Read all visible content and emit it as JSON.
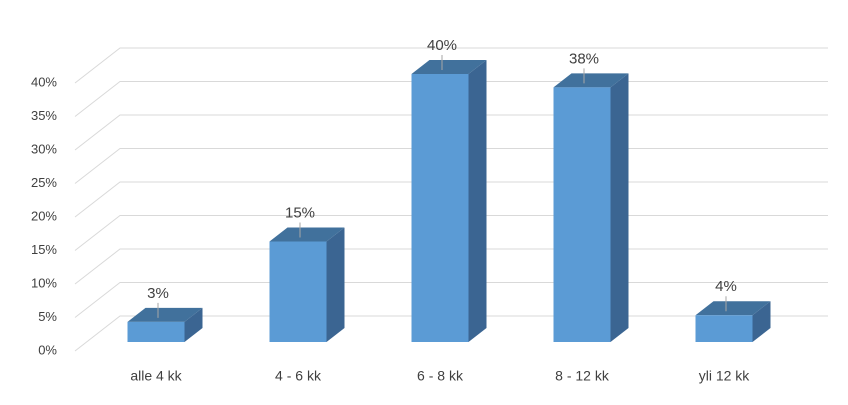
{
  "chart_data": {
    "type": "bar3d",
    "categories": [
      "alle 4 kk",
      "4 - 6 kk",
      "6 - 8 kk",
      "8 - 12 kk",
      "yli 12 kk"
    ],
    "values": [
      3,
      15,
      40,
      38,
      4
    ],
    "value_labels": [
      "3%",
      "15%",
      "40%",
      "38%",
      "4%"
    ],
    "color": "#5b9bd5",
    "ylim": [
      0,
      40
    ],
    "yticks": [
      {
        "value": 0,
        "label": "0%"
      },
      {
        "value": 5,
        "label": "5%"
      },
      {
        "value": 10,
        "label": "10%"
      },
      {
        "value": 15,
        "label": "15%"
      },
      {
        "value": 20,
        "label": "20%"
      },
      {
        "value": 25,
        "label": "25%"
      },
      {
        "value": 30,
        "label": "30%"
      },
      {
        "value": 35,
        "label": "35%"
      },
      {
        "value": 40,
        "label": "40%"
      }
    ],
    "grid": true
  }
}
